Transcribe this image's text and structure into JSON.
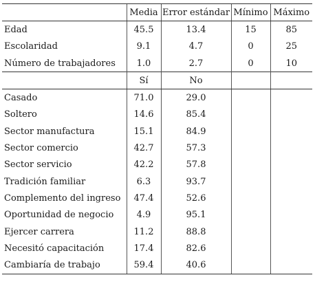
{
  "header": {
    "label": "",
    "media": "Media",
    "error": "Error estándar",
    "minimo": "Mínimo",
    "maximo": "Máximo"
  },
  "continuous_rows": [
    {
      "label": "Edad",
      "media": "45.5",
      "error": "13.4",
      "minimo": "15",
      "maximo": "85"
    },
    {
      "label": "Escolaridad",
      "media": "9.1",
      "error": "4.7",
      "minimo": "0",
      "maximo": "25"
    },
    {
      "label": "Número de trabajadores",
      "media": "1.0",
      "error": "2.7",
      "minimo": "0",
      "maximo": "10"
    }
  ],
  "binary_header": {
    "si": "Sí",
    "no": "No"
  },
  "binary_rows": [
    {
      "label": "Casado",
      "si": "71.0",
      "no": "29.0"
    },
    {
      "label": "Soltero",
      "si": "14.6",
      "no": "85.4"
    },
    {
      "label": "Sector manufactura",
      "si": "15.1",
      "no": "84.9"
    },
    {
      "label": "Sector comercio",
      "si": "42.7",
      "no": "57.3"
    },
    {
      "label": "Sector servicio",
      "si": "42.2",
      "no": "57.8"
    },
    {
      "label": "Tradición familiar",
      "si": "6.3",
      "no": "93.7"
    },
    {
      "label": "Complemento del ingreso",
      "si": "47.4",
      "no": "52.6"
    },
    {
      "label": "Oportunidad de negocio",
      "si": "4.9",
      "no": "95.1"
    },
    {
      "label": "Ejercer carrera",
      "si": "11.2",
      "no": "88.8"
    },
    {
      "label": "Necesitó capacitación",
      "si": "17.4",
      "no": "82.6"
    },
    {
      "label": "Cambiaría de trabajo",
      "si": "59.4",
      "no": "40.6"
    }
  ]
}
